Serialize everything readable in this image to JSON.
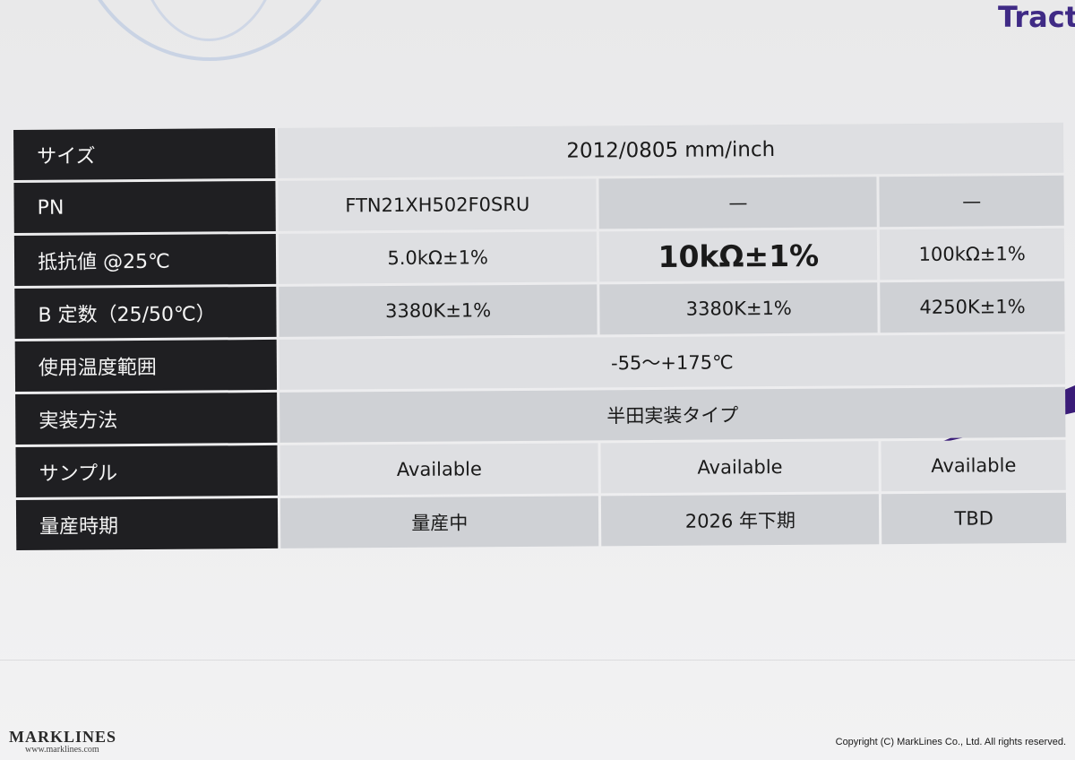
{
  "header": {
    "brand_title": "Tract"
  },
  "table": {
    "rows": [
      {
        "label": "サイズ",
        "cells": [
          "2012/0805 mm/inch"
        ]
      },
      {
        "label": "PN",
        "cells": [
          "FTN21XH502F0SRU",
          "—",
          "—"
        ]
      },
      {
        "label": "抵抗値 @25℃",
        "cells": [
          "5.0kΩ±1%",
          "10kΩ±1%",
          "100kΩ±1%"
        ]
      },
      {
        "label": "B 定数（25/50℃）",
        "cells": [
          "3380K±1%",
          "3380K±1%",
          "4250K±1%"
        ]
      },
      {
        "label": "使用温度範囲",
        "cells": [
          "-55～+175℃"
        ]
      },
      {
        "label": "実装方法",
        "cells": [
          "半田実装タイプ"
        ]
      },
      {
        "label": "サンプル",
        "cells": [
          "Available",
          "Available",
          "Available"
        ]
      },
      {
        "label": "量産時期",
        "cells": [
          "量産中",
          "2026 年下期",
          "TBD"
        ]
      }
    ]
  },
  "footer": {
    "logo": "MARKLINES",
    "logo_url": "www.marklines.com",
    "copyright": "Copyright (C) MarkLines Co., Ltd. All rights reserved."
  },
  "colors": {
    "label_bg": "#1f1f22",
    "cell_bg": "#dedfe2",
    "accent_purple": "#3f2a85"
  }
}
